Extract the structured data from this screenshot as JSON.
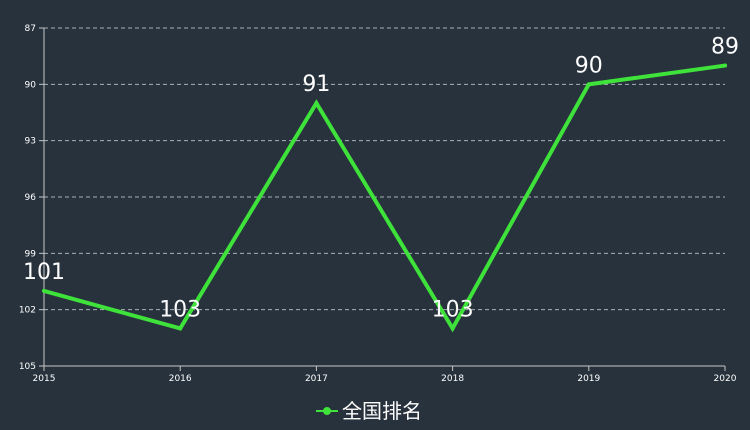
{
  "chart_data": {
    "type": "line",
    "x": [
      "2015",
      "2016",
      "2017",
      "2018",
      "2019",
      "2020"
    ],
    "series": [
      {
        "name": "全国排名",
        "values": [
          101,
          103,
          91,
          103,
          90,
          89
        ],
        "color": "#3ee23a"
      }
    ],
    "y_axis": {
      "min": 87,
      "max": 105,
      "interval": 3,
      "inverse": true,
      "ticks": [
        "87",
        "90",
        "93",
        "96",
        "99",
        "102",
        "105"
      ]
    },
    "grid": true,
    "legend_position": "bottom-center",
    "colors": {
      "background": "#27323d",
      "axis": "#c8c8c8",
      "grid": "#a9b0b7",
      "text": "#ffffff"
    }
  }
}
